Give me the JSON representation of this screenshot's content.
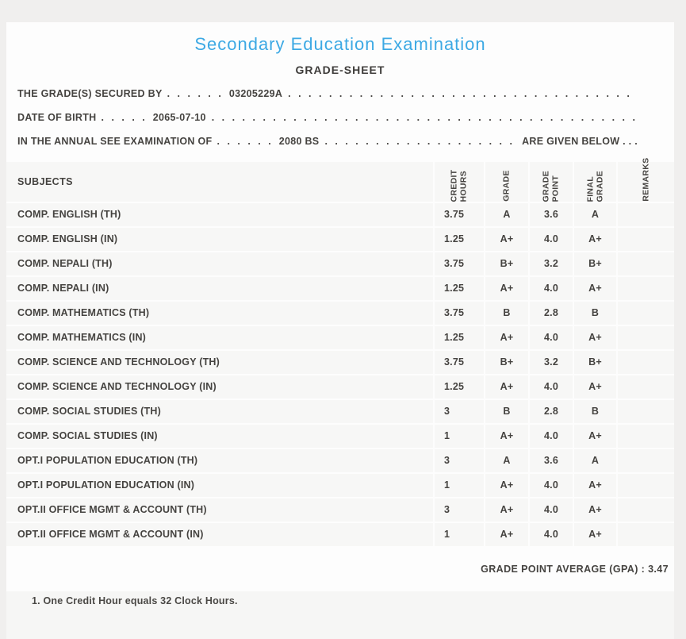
{
  "header": {
    "title": "Secondary Education Examination",
    "subtitle": "GRADE-SHEET"
  },
  "info_lines": [
    {
      "label": "THE GRADE(S) SECURED BY",
      "lead_dots": ". . . . . .",
      "value": "03205229A",
      "fill_dots": ". . . . . . . . . . . . . . . . . . . . . . . . . . . . . . . . . . . . . . . . . . . . . . . . . . . . . . . . . . . . . . . . . . . . . . . . . . . . . . . .",
      "suffix": ""
    },
    {
      "label": "DATE OF BIRTH",
      "lead_dots": ". . . . .",
      "value": "2065-07-10",
      "fill_dots": ". . . . . . . . . . . . . . . . . . . . . . . . . . . . . . . . . . . . . . . . . . . . . . . . . . . . . . . . . . . . . . . . . . . . . . . . . . . . . . . .",
      "suffix": ""
    },
    {
      "label": "IN THE ANNUAL SEE EXAMINATION OF",
      "lead_dots": ". . . . . .",
      "value": "2080 BS",
      "fill_dots": ". . . . . . . . . . . . . . . . . . . . . . . . . . . . . . . . . . . . . . . . . . . . . . . . . . . . . . . . . . . . . . . . . . . . . . . . . . . . . . . .",
      "suffix": "ARE GIVEN BELOW . . ."
    }
  ],
  "table": {
    "subjects_header": "SUBJECTS",
    "columns": [
      {
        "label": "CREDIT\nHOURS"
      },
      {
        "label": "GRADE"
      },
      {
        "label": "GRADE\nPOINT"
      },
      {
        "label": "FINAL\nGRADE"
      },
      {
        "label": "REMARKS"
      }
    ],
    "rows": [
      {
        "subject": "COMP. ENGLISH (TH)",
        "credit": "3.75",
        "grade": "A",
        "point": "3.6",
        "final": "A",
        "remarks": ""
      },
      {
        "subject": "COMP. ENGLISH (IN)",
        "credit": "1.25",
        "grade": "A+",
        "point": "4.0",
        "final": "A+",
        "remarks": ""
      },
      {
        "subject": "COMP. NEPALI (TH)",
        "credit": "3.75",
        "grade": "B+",
        "point": "3.2",
        "final": "B+",
        "remarks": ""
      },
      {
        "subject": "COMP. NEPALI (IN)",
        "credit": "1.25",
        "grade": "A+",
        "point": "4.0",
        "final": "A+",
        "remarks": ""
      },
      {
        "subject": "COMP. MATHEMATICS (TH)",
        "credit": "3.75",
        "grade": "B",
        "point": "2.8",
        "final": "B",
        "remarks": ""
      },
      {
        "subject": "COMP. MATHEMATICS (IN)",
        "credit": "1.25",
        "grade": "A+",
        "point": "4.0",
        "final": "A+",
        "remarks": ""
      },
      {
        "subject": "COMP. SCIENCE AND TECHNOLOGY (TH)",
        "credit": "3.75",
        "grade": "B+",
        "point": "3.2",
        "final": "B+",
        "remarks": ""
      },
      {
        "subject": "COMP. SCIENCE AND TECHNOLOGY (IN)",
        "credit": "1.25",
        "grade": "A+",
        "point": "4.0",
        "final": "A+",
        "remarks": ""
      },
      {
        "subject": "COMP. SOCIAL STUDIES (TH)",
        "credit": "3",
        "grade": "B",
        "point": "2.8",
        "final": "B",
        "remarks": ""
      },
      {
        "subject": "COMP. SOCIAL STUDIES (IN)",
        "credit": "1",
        "grade": "A+",
        "point": "4.0",
        "final": "A+",
        "remarks": ""
      },
      {
        "subject": "OPT.I POPULATION EDUCATION (TH)",
        "credit": "3",
        "grade": "A",
        "point": "3.6",
        "final": "A",
        "remarks": ""
      },
      {
        "subject": "OPT.I POPULATION EDUCATION (IN)",
        "credit": "1",
        "grade": "A+",
        "point": "4.0",
        "final": "A+",
        "remarks": ""
      },
      {
        "subject": "OPT.II OFFICE MGMT & ACCOUNT (TH)",
        "credit": "3",
        "grade": "A+",
        "point": "4.0",
        "final": "A+",
        "remarks": ""
      },
      {
        "subject": "OPT.II OFFICE MGMT & ACCOUNT (IN)",
        "credit": "1",
        "grade": "A+",
        "point": "4.0",
        "final": "A+",
        "remarks": ""
      }
    ]
  },
  "summary": {
    "gpa_line": "GRADE POINT AVERAGE (GPA) : 3.47"
  },
  "footer": {
    "note": "1. One Credit Hour equals 32 Clock Hours."
  },
  "colors": {
    "title_accent": "#3da9e4",
    "text_dark": "#454340",
    "row_background": "#f7f7f6",
    "page_background": "#f0efee"
  }
}
